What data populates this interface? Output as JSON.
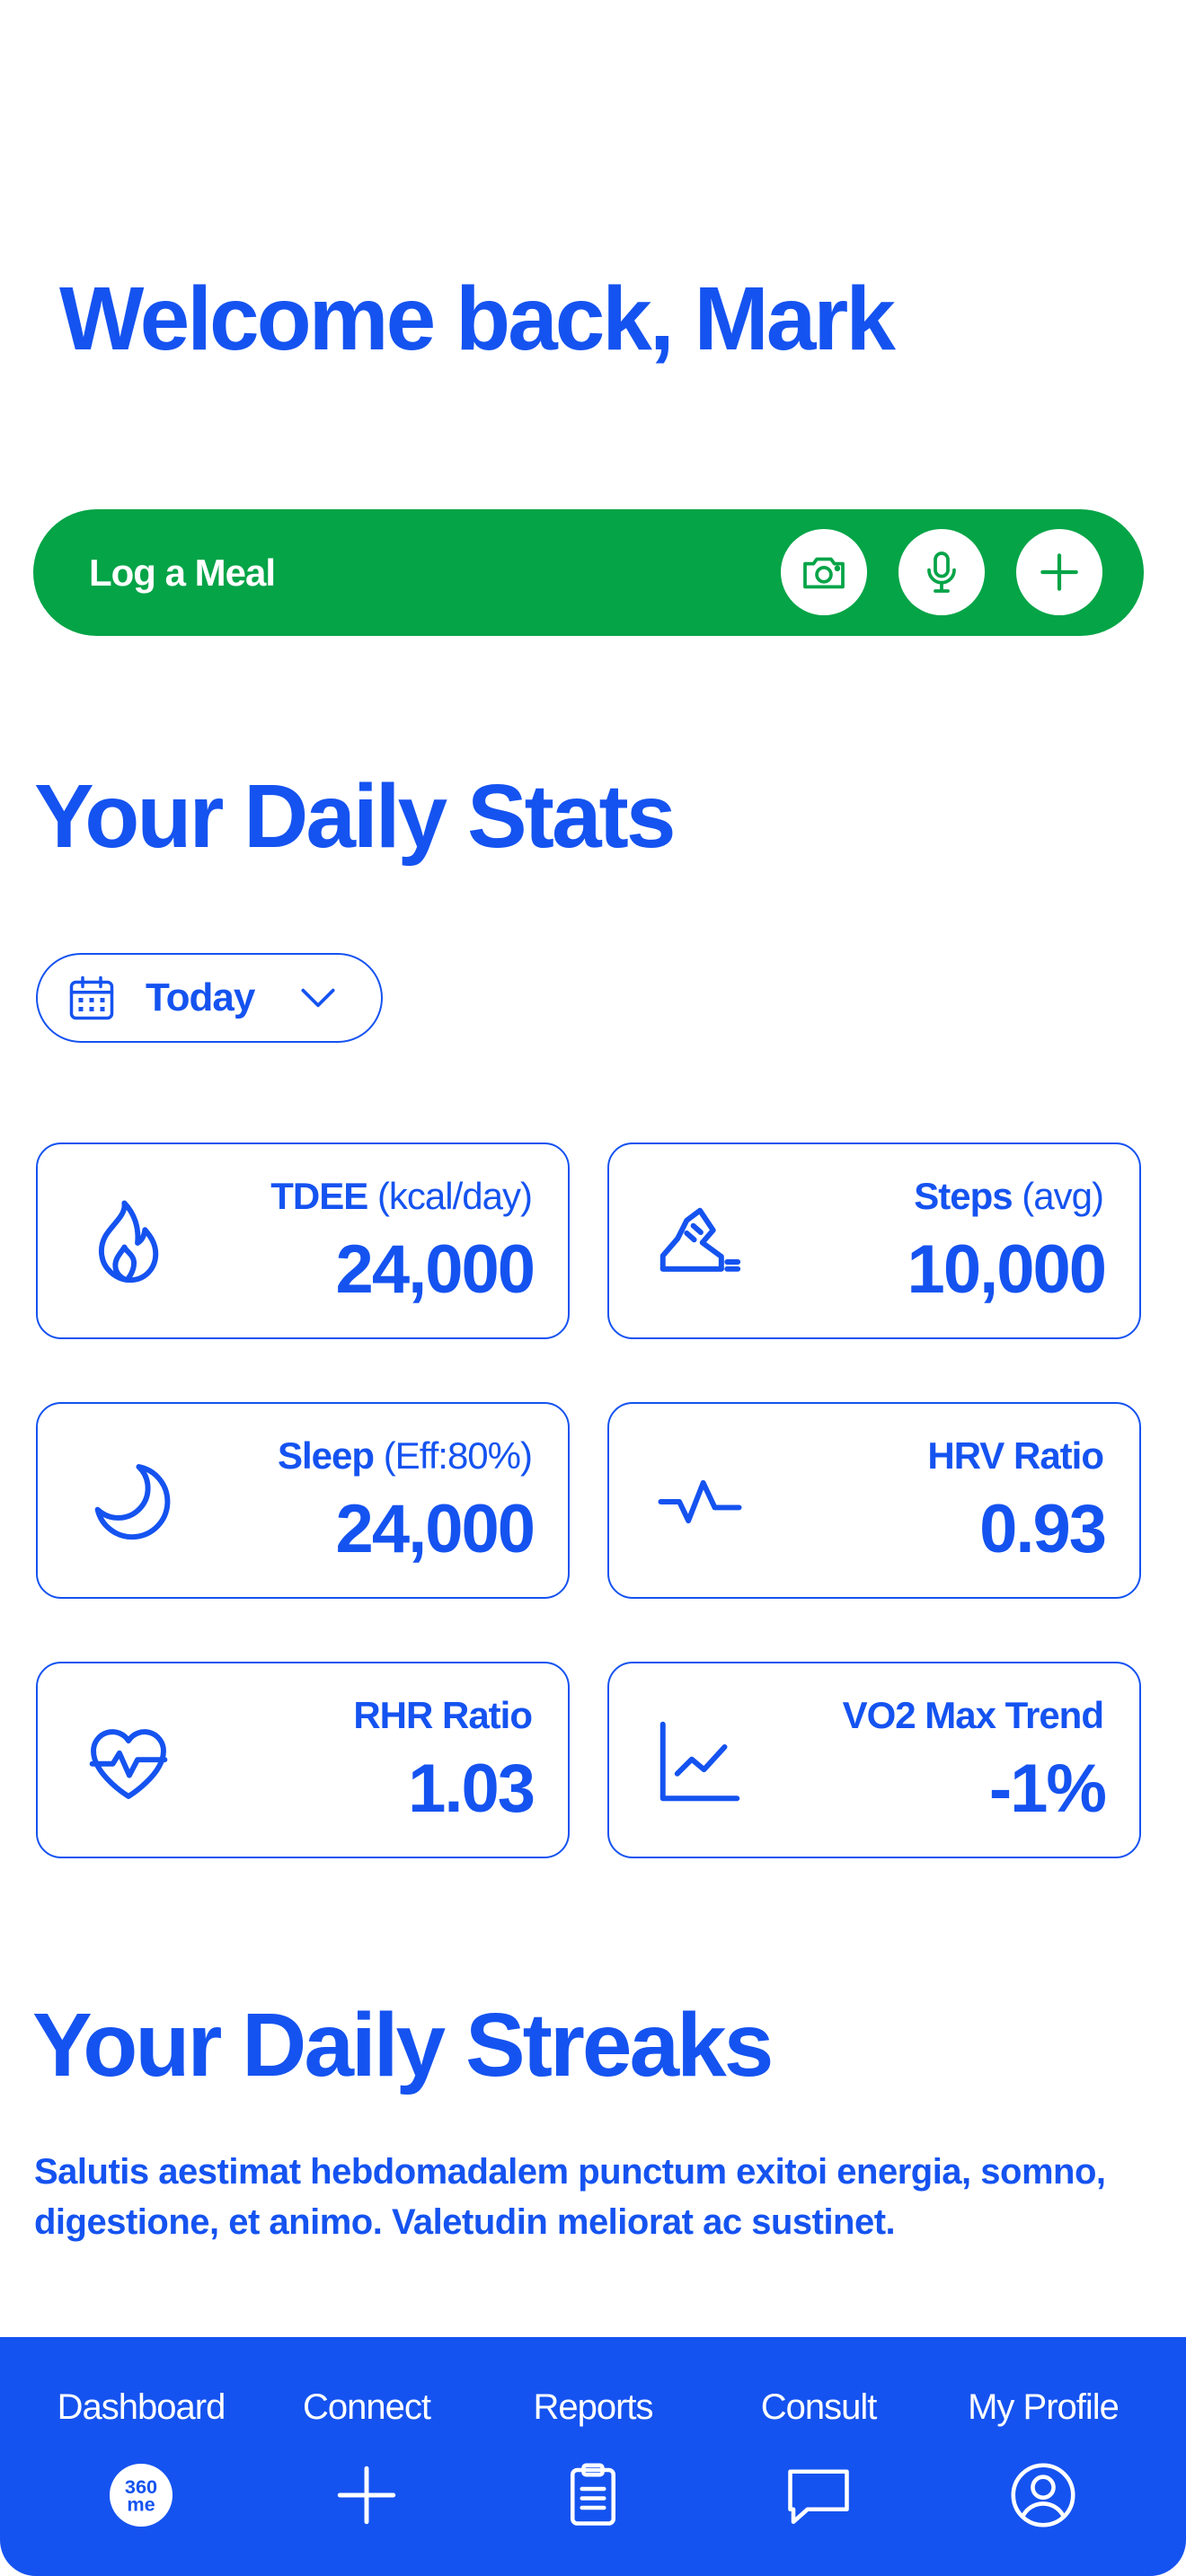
{
  "header": {
    "welcome": "Welcome back, Mark"
  },
  "meal_bar": {
    "label": "Log a Meal",
    "color": "#04a447",
    "actions": [
      {
        "icon": "camera-icon"
      },
      {
        "icon": "microphone-icon"
      },
      {
        "icon": "plus-icon"
      }
    ]
  },
  "stats": {
    "title": "Your Daily Stats",
    "date_filter": {
      "icon": "calendar-icon",
      "value": "Today"
    },
    "cards": [
      {
        "icon": "flame-icon",
        "label_bold": "TDEE",
        "label_rest": " (kcal/day)",
        "value": "24,000"
      },
      {
        "icon": "sneaker-icon",
        "label_bold": "Steps",
        "label_rest": " (avg)",
        "value": "10,000"
      },
      {
        "icon": "moon-icon",
        "label_bold": "Sleep",
        "label_rest": " (Eff:80%)",
        "value": "24,000"
      },
      {
        "icon": "pulse-icon",
        "label_bold": "HRV Ratio",
        "label_rest": "",
        "value": "0.93"
      },
      {
        "icon": "heart-pulse-icon",
        "label_bold": "RHR Ratio",
        "label_rest": "",
        "value": "1.03"
      },
      {
        "icon": "trend-chart-icon",
        "label_bold": "VO2 Max Trend",
        "label_rest": "",
        "value": "-1%"
      }
    ]
  },
  "streaks": {
    "title": "Your Daily Streaks",
    "description": "Salutis aestimat hebdomadalem punctum exitoi energia, somno, digestione, et animo. Valetudin meliorat ac sustinet."
  },
  "bottom_nav": {
    "color": "#1553f0",
    "items": [
      {
        "label": "Dashboard",
        "icon": "360me-logo-icon",
        "logo_text_top": "360",
        "logo_text_bottom": "me"
      },
      {
        "label": "Connect",
        "icon": "plus-icon"
      },
      {
        "label": "Reports",
        "icon": "clipboard-icon"
      },
      {
        "label": "Consult",
        "icon": "chat-bubble-icon"
      },
      {
        "label": "My Profile",
        "icon": "user-circle-icon"
      }
    ]
  },
  "theme": {
    "primary": "#1553f0",
    "success": "#04a447",
    "background": "#ffffff"
  }
}
